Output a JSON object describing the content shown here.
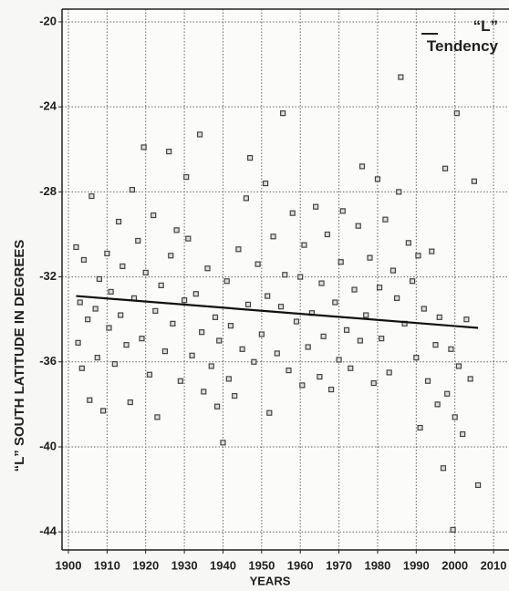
{
  "chart_data": {
    "type": "scatter",
    "xlabel": "YEARS",
    "ylabel": "“L” SOUTH LATITUDE IN DEGREES",
    "xlim": [
      1898.35,
      2014
    ],
    "ylim": [
      -44.85,
      -19.4
    ],
    "xticks": [
      1900,
      1910,
      1920,
      1930,
      1940,
      1950,
      1960,
      1970,
      1980,
      1990,
      2000,
      2010
    ],
    "yticks": [
      -20,
      -24,
      -28,
      -32,
      -36,
      -40,
      -44
    ],
    "grid": true,
    "color": "#444444",
    "x": [
      1902,
      1902.5,
      1903,
      1903.5,
      1904,
      1905,
      1905.5,
      1906,
      1907,
      1907.5,
      1908,
      1909,
      1910,
      1910.5,
      1911,
      1912,
      1913,
      1913.5,
      1914,
      1915,
      1916,
      1916.5,
      1917,
      1918,
      1919,
      1919.5,
      1920,
      1921,
      1922,
      1922.5,
      1923,
      1924,
      1925,
      1926,
      1926.5,
      1927,
      1928,
      1929,
      1930,
      1930.5,
      1931,
      1932,
      1933,
      1934,
      1934.5,
      1935,
      1936,
      1937,
      1938,
      1938.5,
      1939,
      1940,
      1941,
      1941.5,
      1942,
      1943,
      1944,
      1945,
      1946,
      1946.5,
      1947,
      1948,
      1949,
      1950,
      1951,
      1951.5,
      1952,
      1953,
      1954,
      1955,
      1955.5,
      1956,
      1957,
      1958,
      1959,
      1960,
      1960.5,
      1961,
      1962,
      1963,
      1964,
      1965,
      1965.5,
      1966,
      1967,
      1968,
      1969,
      1970,
      1970.5,
      1971,
      1972,
      1973,
      1974,
      1975,
      1975.5,
      1976,
      1977,
      1978,
      1979,
      1980,
      1980.5,
      1981,
      1982,
      1983,
      1984,
      1985,
      1985.5,
      1986,
      1987,
      1988,
      1989,
      1990,
      1990.5,
      1991,
      1992,
      1993,
      1994,
      1995,
      1995.5,
      1996,
      1997,
      1997.5,
      1998,
      1999,
      1999.5,
      2000,
      2000.5,
      2001,
      2002,
      2003,
      2004,
      2005,
      2006
    ],
    "values": [
      -30.6,
      -35.1,
      -33.2,
      -36.3,
      -31.2,
      -34.0,
      -37.8,
      -28.2,
      -33.5,
      -35.8,
      -32.1,
      -38.3,
      -30.9,
      -34.4,
      -32.7,
      -36.1,
      -29.4,
      -33.8,
      -31.5,
      -35.2,
      -37.9,
      -27.9,
      -33.0,
      -30.3,
      -34.9,
      -25.9,
      -31.8,
      -36.6,
      -29.1,
      -33.6,
      -38.6,
      -32.4,
      -35.5,
      -26.1,
      -31.0,
      -34.2,
      -29.8,
      -36.9,
      -33.1,
      -27.3,
      -30.2,
      -35.7,
      -32.8,
      -25.3,
      -34.6,
      -37.4,
      -31.6,
      -36.2,
      -33.9,
      -38.1,
      -35.0,
      -39.8,
      -32.2,
      -36.8,
      -34.3,
      -37.6,
      -30.7,
      -35.4,
      -28.3,
      -33.3,
      -26.4,
      -36.0,
      -31.4,
      -34.7,
      -27.6,
      -32.9,
      -38.4,
      -30.1,
      -35.6,
      -33.4,
      -24.3,
      -31.9,
      -36.4,
      -29.0,
      -34.1,
      -32.0,
      -37.1,
      -30.5,
      -35.3,
      -33.7,
      -28.7,
      -36.7,
      -32.3,
      -34.8,
      -30.0,
      -37.3,
      -33.2,
      -35.9,
      -31.3,
      -28.9,
      -34.5,
      -36.3,
      -32.6,
      -29.6,
      -35.0,
      -26.8,
      -33.8,
      -31.1,
      -37.0,
      -27.4,
      -32.5,
      -34.9,
      -29.3,
      -36.5,
      -31.7,
      -33.0,
      -28.0,
      -22.6,
      -34.2,
      -30.4,
      -32.2,
      -35.8,
      -31.0,
      -39.1,
      -33.5,
      -36.9,
      -30.8,
      -35.2,
      -38.0,
      -33.9,
      -41.0,
      -26.9,
      -37.5,
      -35.4,
      -43.9,
      -38.6,
      -24.3,
      -36.2,
      -39.4,
      -34.0,
      -36.8,
      -27.5,
      -41.8
    ],
    "trend": {
      "name": "“L” Tendency",
      "color": "#111111",
      "x": [
        1902,
        2006
      ],
      "values": [
        -32.9,
        -34.4
      ]
    }
  }
}
